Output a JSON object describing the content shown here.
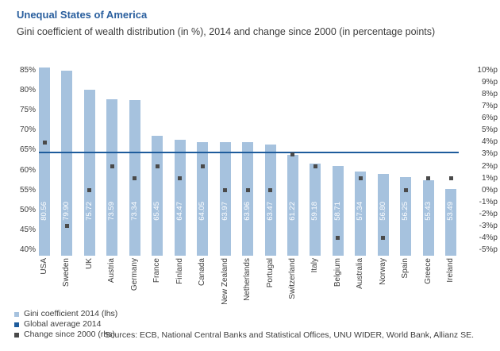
{
  "header": {
    "title": "Unequal States of America",
    "subtitle": "Gini coefficient of wealth distribution (in %), 2014 and change since 2000 (in percentage points)"
  },
  "chart_data": {
    "type": "bar",
    "title": "Unequal States of America",
    "subtitle": "Gini coefficient of wealth distribution (in %), 2014 and change since 2000 (in percentage points)",
    "categories": [
      "USA",
      "Sweden",
      "UK",
      "Austria",
      "Germany",
      "France",
      "Finland",
      "Canada",
      "New Zealand",
      "Netherlands",
      "Portugal",
      "Switzerland",
      "Italy",
      "Belgium",
      "Australia",
      "Norway",
      "Spain",
      "Greece",
      "Ireland"
    ],
    "series": [
      {
        "name": "Gini coefficient 2014 (lhs)",
        "axis": "lhs",
        "values": [
          80.56,
          79.9,
          75.72,
          73.59,
          73.34,
          65.45,
          64.47,
          64.05,
          63.97,
          63.96,
          63.47,
          61.22,
          59.18,
          58.71,
          57.34,
          56.8,
          56.25,
          55.43,
          53.49
        ],
        "labels": [
          "80.56",
          "79.90",
          "75.72",
          "73.59",
          "73.34",
          "65.45",
          "64.47",
          "64.05",
          "63.97",
          "63.96",
          "63.47",
          "61.22",
          "59.18",
          "58.71",
          "57.34",
          "56.80",
          "56.25",
          "55.43",
          "53.49"
        ]
      },
      {
        "name": "Change since 2000 (rhs)",
        "axis": "rhs",
        "values": [
          4,
          -3,
          0,
          2,
          1,
          2,
          1,
          2,
          0,
          0,
          0,
          3,
          2,
          -4,
          1,
          -4,
          0,
          1,
          1
        ]
      }
    ],
    "global_average_2014": 64.4,
    "left_axis": {
      "min": 40,
      "max": 85,
      "step": 5,
      "ticks": [
        "85%",
        "80%",
        "75%",
        "70%",
        "65%",
        "60%",
        "55%",
        "50%",
        "45%",
        "40%"
      ]
    },
    "right_axis": {
      "min": -5,
      "max": 10,
      "step": 1,
      "ticks": [
        "10%p",
        "9%p",
        "8%p",
        "7%p",
        "6%p",
        "5%p",
        "4%p",
        "3%p",
        "2%p",
        "1%p",
        "0%p",
        "-1%p",
        "-2%p",
        "-3%p",
        "-4%p",
        "-5%p"
      ]
    },
    "grid": false,
    "legend_position": "bottom-left"
  },
  "legend": {
    "items": [
      {
        "label": "Gini coefficient 2014 (lhs)",
        "color": "#a6c2de"
      },
      {
        "label": "Global average 2014",
        "color": "#1e5c9c"
      },
      {
        "label": "Change since 2000 (rhs)",
        "color": "#4a4a4a"
      }
    ]
  },
  "sources": "Sources: ECB, National Central Banks and Statistical Offices, UNU WIDER, World Bank, Allianz SE.",
  "colors": {
    "bar": "#a6c2de",
    "average_line": "#1e5c9c",
    "marker": "#4a4a4a",
    "title": "#2a5f9e",
    "text": "#3d3d3d"
  }
}
